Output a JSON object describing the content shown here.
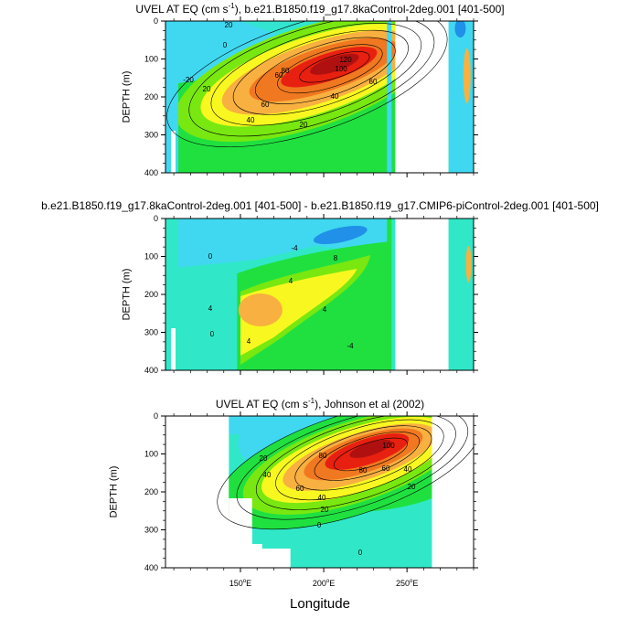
{
  "chart_data": [
    {
      "type": "heatmap",
      "title": "UVEL AT EQ (cm s",
      "title_sup": "-1",
      "title_rest": "), b.e21.B1850.f19_g17.8kaControl-2deg.001 [401-500]",
      "ylabel": "DEPTH (m)",
      "ylim": [
        0,
        400
      ],
      "yticks": [
        "0",
        "100",
        "200",
        "300",
        "400"
      ],
      "xlim": [
        105,
        290
      ],
      "contour_labels": [
        "20",
        "0",
        "-20",
        "20",
        "40",
        "60",
        "80",
        "100",
        "120",
        "20",
        "60",
        "40",
        "20",
        "-20",
        "0",
        "20",
        "40",
        "20"
      ],
      "core_value": 120,
      "core": {
        "x": 205,
        "y": 130
      }
    },
    {
      "type": "heatmap",
      "title": "b.e21.B1850.f19_g17.8kaControl-2deg.001 [401-500] - b.e21.B1850.f19_g17.CMIP6-piControl-2deg.001 [401-500]",
      "ylabel": "DEPTH (m)",
      "ylim": [
        0,
        400
      ],
      "yticks": [
        "0",
        "100",
        "200",
        "300",
        "400"
      ],
      "xlim": [
        105,
        290
      ],
      "contour_labels": [
        "0",
        "-4",
        "4",
        "8",
        "4",
        "4",
        "4",
        "0",
        "-4"
      ],
      "core_value": 8
    },
    {
      "type": "heatmap",
      "title": "UVEL AT EQ (cm s",
      "title_sup": "-1",
      "title_rest": "), Johnson et al (2002)",
      "ylabel": "DEPTH (m)",
      "ylim": [
        0,
        400
      ],
      "yticks": [
        "0",
        "100",
        "200",
        "300",
        "400"
      ],
      "xlim": [
        105,
        290
      ],
      "xticks": [
        "150",
        "200",
        "250"
      ],
      "xtick_suffix": "E",
      "xlabel": "Longitude",
      "contour_labels": [
        "0",
        "20",
        "40",
        "60",
        "80",
        "100",
        "80",
        "60",
        "40",
        "20",
        "40",
        "20",
        "0",
        "0",
        "-20",
        "40",
        "60"
      ],
      "core_value": 100
    }
  ],
  "colors": {
    "deep_blue": "#1040c8",
    "blue": "#2090e8",
    "cyan": "#40d8f0",
    "aqua": "#30e8c8",
    "green": "#20e040",
    "lime": "#78e810",
    "yellow": "#f8f820",
    "orange": "#f8b040",
    "dark_orange": "#f07820",
    "red": "#e82010",
    "dark_red": "#b01010"
  }
}
